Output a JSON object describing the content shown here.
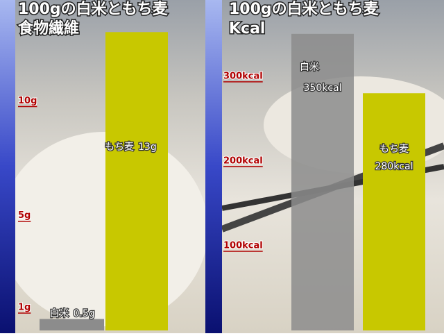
{
  "chart_data": [
    {
      "type": "bar",
      "title": "100gの白米ともち麦",
      "subtitle": "食物繊維",
      "categories": [
        "白米",
        "もち麦"
      ],
      "values": [
        0.5,
        13
      ],
      "value_labels": [
        "0.5g",
        "13g"
      ],
      "colors": [
        "#8c8c8c",
        "#c8c800"
      ],
      "ylim": [
        0,
        14.4
      ],
      "yticks": [
        {
          "value": 1,
          "label": "1g"
        },
        {
          "value": 5,
          "label": "5g"
        },
        {
          "value": 10,
          "label": "10g"
        }
      ],
      "grid": false
    },
    {
      "type": "bar",
      "title": "100gの白米ともち麦",
      "subtitle": "Kcal",
      "categories": [
        "白米",
        "もち麦"
      ],
      "values": [
        350,
        280
      ],
      "value_labels": [
        "350kcal",
        "280kcal"
      ],
      "colors": [
        "#8c8c8c",
        "#c8c800"
      ],
      "ylim": [
        0,
        390
      ],
      "yticks": [
        {
          "value": 100,
          "label": "100kcal"
        },
        {
          "value": 200,
          "label": "200kcal"
        },
        {
          "value": 300,
          "label": "300kcal"
        }
      ],
      "grid": false
    }
  ]
}
